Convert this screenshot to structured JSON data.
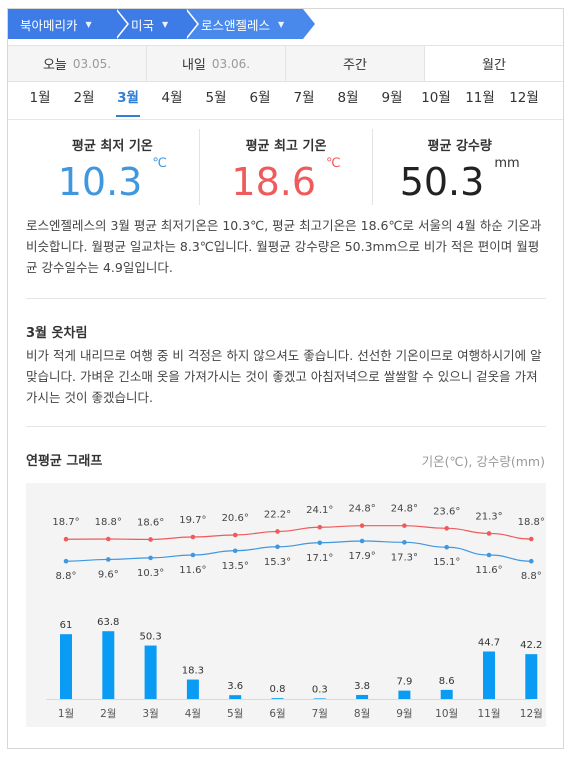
{
  "breadcrumb": [
    {
      "label": "북아메리카"
    },
    {
      "label": "미국"
    },
    {
      "label": "로스앤젤레스"
    }
  ],
  "period_tabs": [
    {
      "label": "오늘",
      "date": "03.05."
    },
    {
      "label": "내일",
      "date": "03.06."
    },
    {
      "label": "주간",
      "date": ""
    },
    {
      "label": "월간",
      "date": ""
    }
  ],
  "months": [
    "1월",
    "2월",
    "3월",
    "4월",
    "5월",
    "6월",
    "7월",
    "8월",
    "9월",
    "10월",
    "11월",
    "12월"
  ],
  "selected_month": "3월",
  "stats": {
    "min": {
      "label": "평균 최저 기온",
      "value": "10.3",
      "unit": "℃"
    },
    "max": {
      "label": "평균 최고 기온",
      "value": "18.6",
      "unit": "℃"
    },
    "rain": {
      "label": "평균 강수량",
      "value": "50.3",
      "unit": "mm"
    }
  },
  "description": "로스엔젤레스의 3월 평균 최저기온은 10.3℃, 평균 최고기온은 18.6℃로 서울의 4월 하순 기온과 비슷합니다. 월평균 일교차는 8.3℃입니다. 월평균 강수량은 50.3mm으로 비가 적은 편이며 월평균 강수일수는 4.9일입니다.",
  "clothing": {
    "title": "3월 옷차림",
    "text": "비가 적게 내리므로 여행 중 비 걱정은 하지 않으셔도 좋습니다. 선선한 기온이므로 여행하시기에 알맞습니다. 가벼운 긴소매 옷을 가져가시는 것이 좋겠고 아침저녁으로 쌀쌀할 수 있으니 겉옷을 가져가시는 것이 좋겠습니다."
  },
  "graph": {
    "title": "연평균 그래프",
    "unit_label": "기온(℃), 강수량(mm)"
  },
  "colors": {
    "accent": "#2f7fd8",
    "max_line": "#ef5a5a",
    "min_line": "#3f97df",
    "bar": "#0a9cf5"
  },
  "chart_data": {
    "type": "bar",
    "categories": [
      "1월",
      "2월",
      "3월",
      "4월",
      "5월",
      "6월",
      "7월",
      "8월",
      "9월",
      "10월",
      "11월",
      "12월"
    ],
    "series": [
      {
        "type": "line",
        "values": [
          18.7,
          18.8,
          18.6,
          19.7,
          20.6,
          22.2,
          24.1,
          24.8,
          24.8,
          23.6,
          21.3,
          18.8
        ],
        "labels": [
          "18.7°",
          "18.8°",
          "18.6°",
          "19.7°",
          "20.6°",
          "22.2°",
          "24.1°",
          "24.8°",
          "24.8°",
          "23.6°",
          "21.3°",
          "18.8°"
        ]
      },
      {
        "type": "line",
        "values": [
          8.8,
          9.6,
          10.3,
          11.6,
          13.5,
          15.3,
          17.1,
          17.9,
          17.3,
          15.1,
          11.6,
          8.8
        ],
        "labels": [
          "8.8°",
          "9.6°",
          "10.3°",
          "11.6°",
          "13.5°",
          "15.3°",
          "17.1°",
          "17.9°",
          "17.3°",
          "15.1°",
          "11.6°",
          "8.8°"
        ]
      },
      {
        "type": "bar",
        "values": [
          61,
          63.8,
          50.3,
          18.3,
          3.6,
          0.8,
          0.3,
          3.8,
          7.9,
          8.6,
          44.7,
          42.2
        ],
        "labels": [
          "61",
          "63.8",
          "50.3",
          "18.3",
          "3.6",
          "0.8",
          "0.3",
          "3.8",
          "7.9",
          "8.6",
          "44.7",
          "42.2"
        ]
      }
    ],
    "legend": "none",
    "grid": false
  }
}
